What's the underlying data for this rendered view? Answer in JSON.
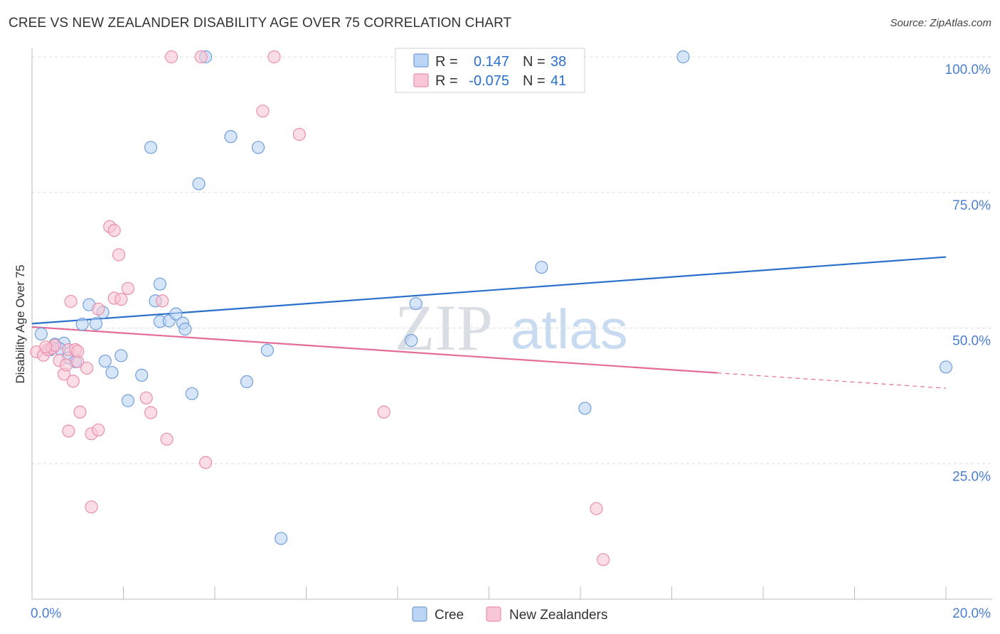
{
  "title": "CREE VS NEW ZEALANDER DISABILITY AGE OVER 75 CORRELATION CHART",
  "source": "Source: ZipAtlas.com",
  "watermark": {
    "zip": "ZIP",
    "atlas": "atlas"
  },
  "colors": {
    "cree_fill": "#bcd4f5",
    "cree_stroke": "#6f9fdc",
    "cree_line": "#2a6fcc",
    "nz_fill": "#f8c6d6",
    "nz_stroke": "#ec8fac",
    "nz_line": "#e56c99",
    "tick": "#4a7fd1",
    "grid": "#dcdcdc"
  },
  "legend": {
    "rows": [
      {
        "r_label": "R =",
        "r_value": "0.147",
        "n_label": "N =",
        "n_value": "38"
      },
      {
        "r_label": "R =",
        "r_value": "-0.075",
        "n_label": "N =",
        "n_value": "41"
      }
    ]
  },
  "chart_data": {
    "type": "scatter",
    "title": "CREE VS NEW ZEALANDER DISABILITY AGE OVER 75 CORRELATION CHART",
    "xlabel": "",
    "ylabel": "Disability Age Over 75",
    "xlim": [
      0,
      20
    ],
    "ylim": [
      0,
      100
    ],
    "x_tick_labels": [
      "0.0%",
      "20.0%"
    ],
    "y_ticks": [
      25,
      50,
      75,
      100
    ],
    "y_tick_labels": [
      "25.0%",
      "50.0%",
      "75.0%",
      "100.0%"
    ],
    "grid": true,
    "series": [
      {
        "name": "Cree",
        "r": 0.147,
        "n": 38,
        "trend": {
          "x0": 0,
          "y0": 50.8,
          "x1": 20,
          "y1": 63.1,
          "solid_until": 20
        },
        "points": [
          [
            0.2,
            48.9
          ],
          [
            0.5,
            47.0
          ],
          [
            0.7,
            47.2
          ],
          [
            0.8,
            44.5
          ],
          [
            0.95,
            43.8
          ],
          [
            1.1,
            50.7
          ],
          [
            1.25,
            54.3
          ],
          [
            1.4,
            50.8
          ],
          [
            1.55,
            52.9
          ],
          [
            1.6,
            43.9
          ],
          [
            1.75,
            41.8
          ],
          [
            1.95,
            44.9
          ],
          [
            2.1,
            36.6
          ],
          [
            2.4,
            41.3
          ],
          [
            2.6,
            83.3
          ],
          [
            2.7,
            55.0
          ],
          [
            2.8,
            51.2
          ],
          [
            2.8,
            58.1
          ],
          [
            3.0,
            51.3
          ],
          [
            3.15,
            52.6
          ],
          [
            3.3,
            50.9
          ],
          [
            3.35,
            49.8
          ],
          [
            3.5,
            37.9
          ],
          [
            3.65,
            76.6
          ],
          [
            3.8,
            100.0
          ],
          [
            4.35,
            85.3
          ],
          [
            4.7,
            40.1
          ],
          [
            4.95,
            83.3
          ],
          [
            5.15,
            45.9
          ],
          [
            5.45,
            11.2
          ],
          [
            8.3,
            47.7
          ],
          [
            8.4,
            54.5
          ],
          [
            11.15,
            61.2
          ],
          [
            12.1,
            35.2
          ],
          [
            14.25,
            100.0
          ],
          [
            20.0,
            42.8
          ],
          [
            0.4,
            46.0
          ],
          [
            0.6,
            46.2
          ]
        ]
      },
      {
        "name": "New Zealanders",
        "r": -0.075,
        "n": 41,
        "trend": {
          "x0": 0,
          "y0": 50.2,
          "x1": 20,
          "y1": 38.9,
          "solid_until": 15
        },
        "points": [
          [
            0.1,
            45.6
          ],
          [
            0.25,
            45.0
          ],
          [
            0.35,
            46.0
          ],
          [
            0.45,
            46.3
          ],
          [
            0.6,
            44.0
          ],
          [
            0.7,
            41.5
          ],
          [
            0.75,
            43.2
          ],
          [
            0.8,
            46.0
          ],
          [
            0.9,
            40.2
          ],
          [
            0.8,
            31.0
          ],
          [
            0.85,
            54.9
          ],
          [
            0.95,
            46.0
          ],
          [
            1.0,
            43.8
          ],
          [
            1.05,
            34.5
          ],
          [
            1.2,
            42.6
          ],
          [
            1.3,
            30.5
          ],
          [
            1.3,
            17.0
          ],
          [
            1.45,
            31.2
          ],
          [
            1.45,
            53.5
          ],
          [
            1.7,
            68.7
          ],
          [
            1.8,
            68.0
          ],
          [
            1.8,
            55.5
          ],
          [
            1.9,
            63.5
          ],
          [
            1.95,
            55.3
          ],
          [
            2.1,
            57.3
          ],
          [
            2.5,
            37.1
          ],
          [
            2.6,
            34.4
          ],
          [
            2.85,
            55.0
          ],
          [
            2.95,
            29.5
          ],
          [
            3.05,
            100.0
          ],
          [
            3.7,
            100.0
          ],
          [
            3.8,
            25.2
          ],
          [
            5.05,
            90.0
          ],
          [
            5.3,
            100.0
          ],
          [
            5.85,
            85.7
          ],
          [
            7.7,
            34.5
          ],
          [
            12.35,
            16.7
          ],
          [
            12.5,
            7.3
          ],
          [
            0.5,
            46.8
          ],
          [
            0.3,
            46.5
          ],
          [
            1.0,
            45.7
          ]
        ]
      }
    ]
  },
  "bottom_legend": [
    {
      "label": "Cree"
    },
    {
      "label": "New Zealanders"
    }
  ]
}
